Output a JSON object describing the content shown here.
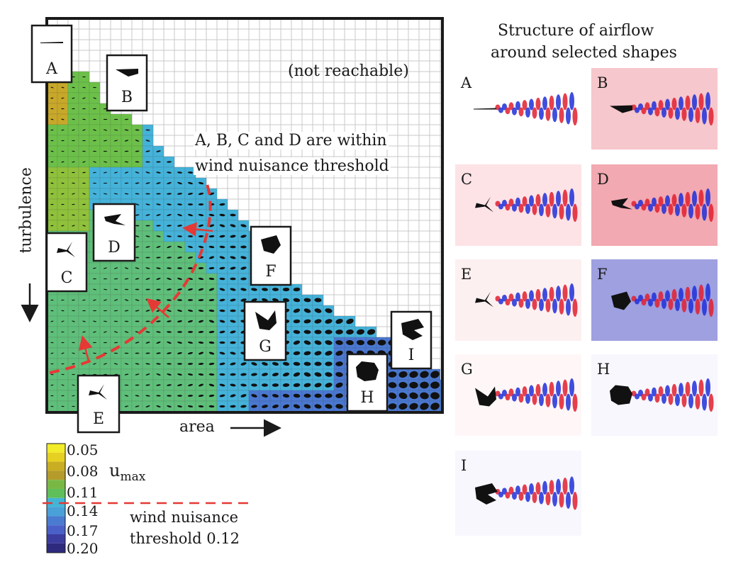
{
  "map": {
    "x_axis_label": "area",
    "y_axis_label": "turbulence",
    "unreachable_note": "(not reachable)",
    "annotation": [
      "A, B, C and D are within",
      "wind nuisance threshold"
    ],
    "threshold_line_color": "#e53935"
  },
  "shape_callouts": [
    {
      "id": "A",
      "shape": "thin-plate"
    },
    {
      "id": "B",
      "shape": "wedge"
    },
    {
      "id": "C",
      "shape": "three-prong-star"
    },
    {
      "id": "D",
      "shape": "arrowhead"
    },
    {
      "id": "E",
      "shape": "three-prong-star"
    },
    {
      "id": "F",
      "shape": "pentagon"
    },
    {
      "id": "G",
      "shape": "notched-blob"
    },
    {
      "id": "H",
      "shape": "octagon"
    },
    {
      "id": "I",
      "shape": "notched-pentagon"
    }
  ],
  "colorbar": {
    "symbol": "u",
    "subscript": "max",
    "ticks": [
      "0.05",
      "0.08",
      "0.11",
      "0.14",
      "0.17",
      "0.20"
    ],
    "colors": [
      "#e8e022",
      "#c8a82a",
      "#6cc04a",
      "#45b2d9",
      "#4a78d1",
      "#3b2a8c"
    ],
    "threshold_label": [
      "wind nuisance",
      "threshold 0.12"
    ]
  },
  "airflow": {
    "title": [
      "Structure of airflow",
      "around selected shapes"
    ],
    "panels": [
      {
        "id": "A",
        "background": "#ffffff"
      },
      {
        "id": "B",
        "background": "#f6c7cc"
      },
      {
        "id": "C",
        "background": "#fde3e6"
      },
      {
        "id": "D",
        "background": "#f2a9b1"
      },
      {
        "id": "E",
        "background": "#fdf0f1"
      },
      {
        "id": "F",
        "background": "#9ea0e0"
      },
      {
        "id": "G",
        "background": "#fff7f7"
      },
      {
        "id": "H",
        "background": "#f7f7fd"
      },
      {
        "id": "I",
        "background": "#f7f7fd"
      }
    ]
  }
}
